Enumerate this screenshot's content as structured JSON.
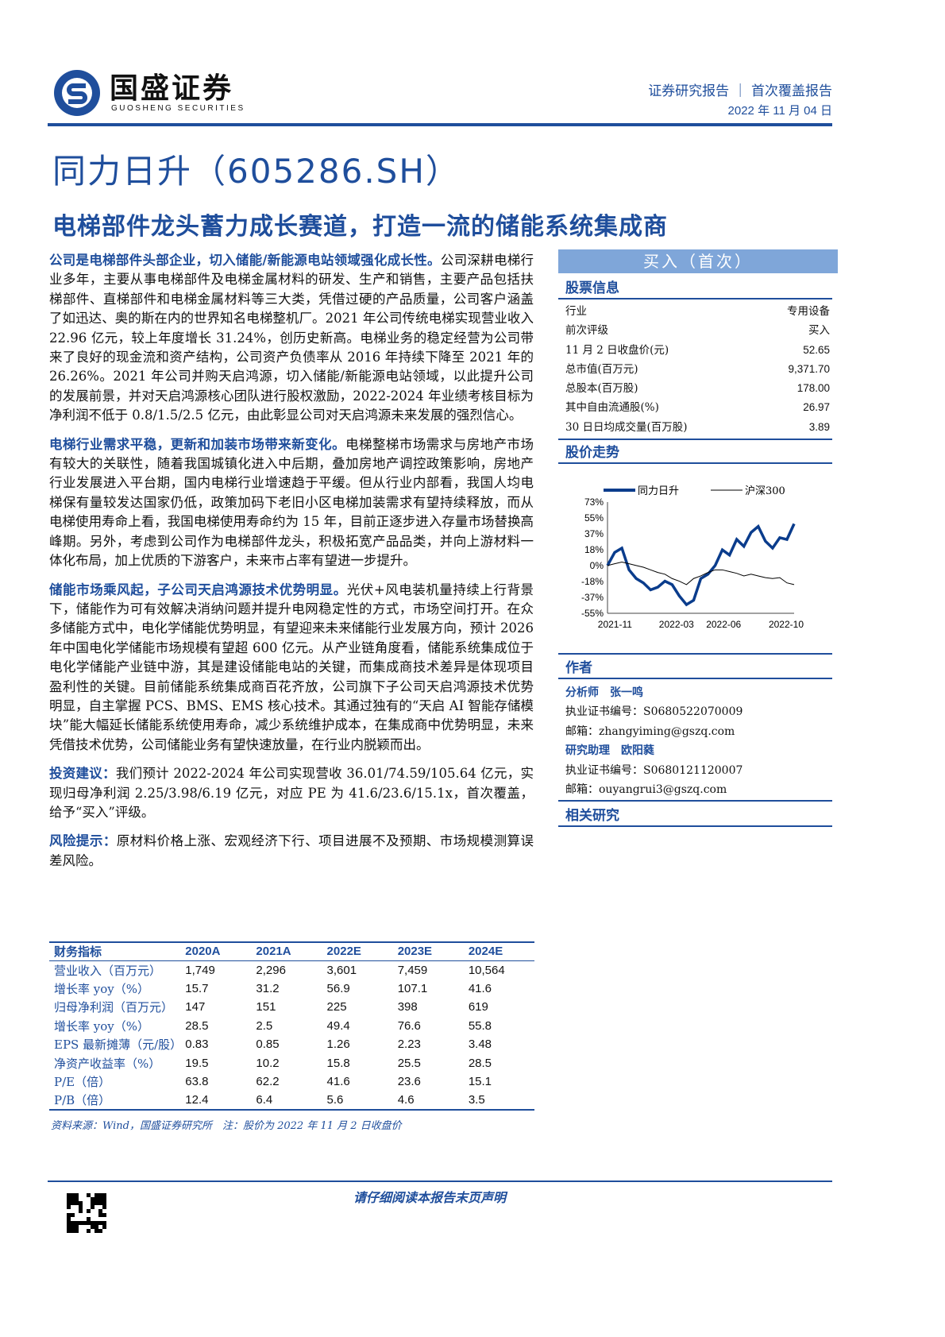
{
  "header": {
    "logo_cn": "国盛证券",
    "logo_en": "GUOSHENG SECURITIES",
    "report_type": "证券研究报告 ｜ 首次覆盖报告",
    "date": "2022 年 11 月 04 日"
  },
  "title": "同力日升（605286.SH）",
  "subtitle": "电梯部件龙头蓄力成长赛道，打造一流的储能系统集成商",
  "paragraphs": [
    {
      "lead": "公司是电梯部件头部企业，切入储能/新能源电站领域强化成长性。",
      "body": "公司深耕电梯行业多年，主要从事电梯部件及电梯金属材料的研发、生产和销售，主要产品包括扶梯部件、直梯部件和电梯金属材料等三大类，凭借过硬的产品质量，公司客户涵盖了如迅达、奥的斯在内的世界知名电梯整机厂。2021 年公司传统电梯实现营业收入 22.96 亿元，较上年度增长 31.24%，创历史新高。电梯业务的稳定经营为公司带来了良好的现金流和资产结构，公司资产负债率从 2016 年持续下降至 2021 年的 26.26%。2021 年公司并购天启鸿源，切入储能/新能源电站领域，以此提升公司的发展前景，并对天启鸿源核心团队进行股权激励，2022-2024 年业绩考核目标为净利润不低于 0.8/1.5/2.5 亿元，由此彰显公司对天启鸿源未来发展的强烈信心。"
    },
    {
      "lead": "电梯行业需求平稳，更新和加装市场带来新变化。",
      "body": "电梯整梯市场需求与房地产市场有较大的关联性，随着我国城镇化进入中后期，叠加房地产调控政策影响，房地产行业发展进入平台期，国内电梯行业增速趋于平缓。但从行业内部看，我国人均电梯保有量较发达国家仍低，政策加码下老旧小区电梯加装需求有望持续释放，而从电梯使用寿命上看，我国电梯使用寿命约为 15 年，目前正逐步进入存量市场替换高峰期。另外，考虑到公司作为电梯部件龙头，积极拓宽产品品类，并向上游材料一体化布局，加上优质的下游客户，未来市占率有望进一步提升。"
    },
    {
      "lead": "储能市场乘风起，子公司天启鸿源技术优势明显。",
      "body": "光伏+风电装机量持续上行背景下，储能作为可有效解决消纳问题并提升电网稳定性的方式，市场空间打开。在众多储能方式中，电化学储能优势明显，有望迎来未来储能行业发展方向，预计 2026 年中国电化学储能市场规模有望超 600 亿元。从产业链角度看，储能系统集成位于电化学储能产业链中游，其是建设储能电站的关键，而集成商技术差异是体现项目盈利性的关键。目前储能系统集成商百花齐放，公司旗下子公司天启鸿源技术优势明显，自主掌握 PCS、BMS、EMS 核心技术。其通过独有的“天启 AI 智能存储模块”能大幅延长储能系统使用寿命，减少系统维护成本，在集成商中优势明显，未来凭借技术优势，公司储能业务有望快速放量，在行业内脱颖而出。"
    },
    {
      "lead": "投资建议：",
      "body": "我们预计 2022-2024 年公司实现营收 36.01/74.59/105.64 亿元，实现归母净利润 2.25/3.98/6.19 亿元，对应 PE 为 41.6/23.6/15.1x，首次覆盖，给予“买入”评级。"
    },
    {
      "lead": "风险提示：",
      "body": "原材料价格上涨、宏观经济下行、项目进展不及预期、市场规模测算误差风险。"
    }
  ],
  "rating": "买入（首次）",
  "stock_info": {
    "heading": "股票信息",
    "rows": [
      [
        "行业",
        "专用设备"
      ],
      [
        "前次评级",
        "买入"
      ],
      [
        "11 月 2 日收盘价(元)",
        "52.65"
      ],
      [
        "总市值(百万元)",
        "9,371.70"
      ],
      [
        "总股本(百万股)",
        "178.00"
      ],
      [
        "其中自由流通股(%)",
        "26.97"
      ],
      [
        "30 日日均成交量(百万股)",
        "3.89"
      ]
    ]
  },
  "price_heading": "股价走势",
  "chart_data": {
    "type": "line",
    "yticks": [
      "73%",
      "55%",
      "37%",
      "18%",
      "0%",
      "-18%",
      "-37%",
      "-55%"
    ],
    "ylim": [
      -55,
      73
    ],
    "xticks": [
      "2021-11",
      "2022-03",
      "2022-06",
      "2022-10"
    ],
    "x": [
      "2021-11-02",
      "2021-11-16",
      "2021-11-30",
      "2021-12-14",
      "2021-12-28",
      "2022-01-11",
      "2022-01-25",
      "2022-02-08",
      "2022-02-22",
      "2022-03-08",
      "2022-03-22",
      "2022-04-05",
      "2022-04-19",
      "2022-05-03",
      "2022-05-17",
      "2022-05-31",
      "2022-06-14",
      "2022-06-28",
      "2022-07-12",
      "2022-07-26",
      "2022-08-09",
      "2022-08-23",
      "2022-09-06",
      "2022-09-20",
      "2022-10-04",
      "2022-10-18",
      "2022-11-01"
    ],
    "series": [
      {
        "name": "同力日升",
        "color": "#0a3c8c",
        "values": [
          0,
          15,
          20,
          -5,
          -15,
          -20,
          -28,
          -25,
          -18,
          -22,
          -35,
          -45,
          -40,
          -15,
          -10,
          0,
          18,
          12,
          30,
          22,
          38,
          45,
          28,
          20,
          32,
          30,
          48
        ]
      },
      {
        "name": "沪深300",
        "color": "#000000",
        "values": [
          0,
          2,
          4,
          2,
          0,
          -2,
          -5,
          -8,
          -10,
          -15,
          -18,
          -22,
          -15,
          -12,
          -8,
          -5,
          -5,
          -7,
          -9,
          -12,
          -10,
          -12,
          -14,
          -15,
          -14,
          -20,
          -22
        ]
      }
    ]
  },
  "authors": {
    "heading": "作者",
    "analyst_label": "分析师",
    "analyst": "张一鸣",
    "analyst_cert": "执业证书编号：S0680522070009",
    "analyst_email": "邮箱：zhangyiming@gszq.com",
    "assistant_label": "研究助理",
    "assistant": "欧阳蕤",
    "assistant_cert": "执业证书编号：S0680121120007",
    "assistant_email": "邮箱：ouyangrui3@gszq.com"
  },
  "related_heading": "相关研究",
  "financials": {
    "headers": [
      "财务指标",
      "2020A",
      "2021A",
      "2022E",
      "2023E",
      "2024E"
    ],
    "rows": [
      [
        "营业收入（百万元）",
        "1,749",
        "2,296",
        "3,601",
        "7,459",
        "10,564"
      ],
      [
        "增长率 yoy（%）",
        "15.7",
        "31.2",
        "56.9",
        "107.1",
        "41.6"
      ],
      [
        "归母净利润（百万元）",
        "147",
        "151",
        "225",
        "398",
        "619"
      ],
      [
        "增长率 yoy（%）",
        "28.5",
        "2.5",
        "49.4",
        "76.6",
        "55.8"
      ],
      [
        "EPS 最新摊薄（元/股）",
        "0.83",
        "0.85",
        "1.26",
        "2.23",
        "3.48"
      ],
      [
        "净资产收益率（%）",
        "19.5",
        "10.2",
        "15.8",
        "25.5",
        "28.5"
      ],
      [
        "P/E（倍）",
        "63.8",
        "62.2",
        "41.6",
        "23.6",
        "15.1"
      ],
      [
        "P/B（倍）",
        "12.4",
        "6.4",
        "5.6",
        "4.6",
        "3.5"
      ]
    ]
  },
  "source": "资料来源：Wind，国盛证券研究所　注：股价为 2022 年 11 月 2 日收盘价",
  "footer": {
    "disclaimer": "请仔细阅读本报告末页声明"
  }
}
